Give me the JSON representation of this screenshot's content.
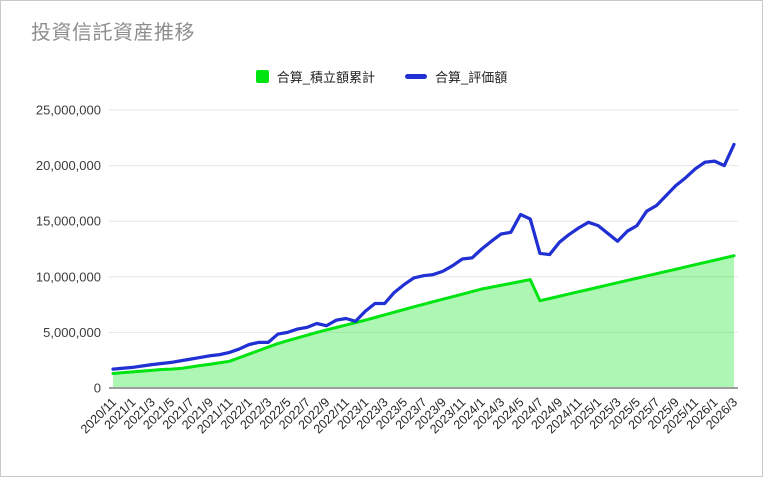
{
  "chart": {
    "title": "投資信託資産推移",
    "title_color": "#8e8e8e",
    "background": "#ffffff",
    "frame_border_color": "#c9c9c9",
    "legend": [
      {
        "label": "合算_積立額累計",
        "marker": "square",
        "color": "#00e412"
      },
      {
        "label": "合算_評価額",
        "marker": "line",
        "color": "#2130d2"
      }
    ]
  },
  "chart_data": {
    "type": "area",
    "title": "投資信託資産推移",
    "xlabel": "",
    "ylabel": "",
    "legend_position": "top",
    "grid": true,
    "x_tick_step": 2,
    "x": [
      "2020/11",
      "2020/12",
      "2021/1",
      "2021/2",
      "2021/3",
      "2021/4",
      "2021/5",
      "2021/6",
      "2021/7",
      "2021/8",
      "2021/9",
      "2021/10",
      "2021/11",
      "2021/12",
      "2022/1",
      "2022/2",
      "2022/3",
      "2022/4",
      "2022/5",
      "2022/6",
      "2022/7",
      "2022/8",
      "2022/9",
      "2022/10",
      "2022/11",
      "2022/12",
      "2023/1",
      "2023/2",
      "2023/3",
      "2023/4",
      "2023/5",
      "2023/6",
      "2023/7",
      "2023/8",
      "2023/9",
      "2023/10",
      "2023/11",
      "2023/12",
      "2024/1",
      "2024/2",
      "2024/3",
      "2024/4",
      "2024/5",
      "2024/6",
      "2024/7",
      "2024/8",
      "2024/9",
      "2024/10",
      "2024/11",
      "2024/12",
      "2025/1",
      "2025/2",
      "2025/3",
      "2025/4",
      "2025/5",
      "2025/6",
      "2025/7",
      "2025/8",
      "2025/9",
      "2025/10",
      "2025/11",
      "2025/12",
      "2026/1",
      "2026/2",
      "2026/3"
    ],
    "series": [
      {
        "name": "合算_積立額累計",
        "type": "area",
        "color": "#00e412",
        "fill_opacity": 0.32,
        "values": [
          1300000,
          1380000,
          1450000,
          1520000,
          1590000,
          1660000,
          1700000,
          1760000,
          1890000,
          2020000,
          2140000,
          2270000,
          2400000,
          2720000,
          3040000,
          3360000,
          3680000,
          4000000,
          4250000,
          4500000,
          4750000,
          5000000,
          5220000,
          5440000,
          5660000,
          5880000,
          6100000,
          6340000,
          6580000,
          6820000,
          7060000,
          7300000,
          7530000,
          7760000,
          7990000,
          8210000,
          8440000,
          8670000,
          8900000,
          9070000,
          9240000,
          9410000,
          9580000,
          9750000,
          7850000,
          8050000,
          8250000,
          8460000,
          8660000,
          8860000,
          9060000,
          9270000,
          9470000,
          9670000,
          9870000,
          10080000,
          10280000,
          10480000,
          10680000,
          10890000,
          11090000,
          11290000,
          11490000,
          11700000,
          11900000
        ]
      },
      {
        "name": "合算_評価額",
        "type": "line",
        "color": "#2130d2",
        "values": [
          1700000,
          1780000,
          1850000,
          1980000,
          2100000,
          2200000,
          2300000,
          2450000,
          2600000,
          2750000,
          2900000,
          3000000,
          3200000,
          3500000,
          3900000,
          4100000,
          4100000,
          4850000,
          5000000,
          5300000,
          5450000,
          5800000,
          5600000,
          6100000,
          6250000,
          6000000,
          6900000,
          7600000,
          7600000,
          8600000,
          9300000,
          9900000,
          10100000,
          10200000,
          10500000,
          11000000,
          11600000,
          11700000,
          12500000,
          13200000,
          13850000,
          14000000,
          15600000,
          15200000,
          12100000,
          12000000,
          13100000,
          13800000,
          14400000,
          14900000,
          14600000,
          13900000,
          13200000,
          14100000,
          14600000,
          15900000,
          16400000,
          17300000,
          18200000,
          18900000,
          19700000,
          20300000,
          20400000,
          20000000,
          21900000
        ]
      }
    ],
    "ylim": [
      0,
      25000000
    ],
    "y_ticks": [
      0,
      5000000,
      10000000,
      15000000,
      20000000,
      25000000
    ],
    "y_tick_labels": [
      "0",
      "5,000,000",
      "10,000,000",
      "15,000,000",
      "20,000,000",
      "25,000,000"
    ],
    "colors": {
      "gridline": "#e6e6e6",
      "axis_baseline": "#9e9e9e",
      "y_label": "#3d3d3d",
      "x_label": "#262626"
    }
  }
}
